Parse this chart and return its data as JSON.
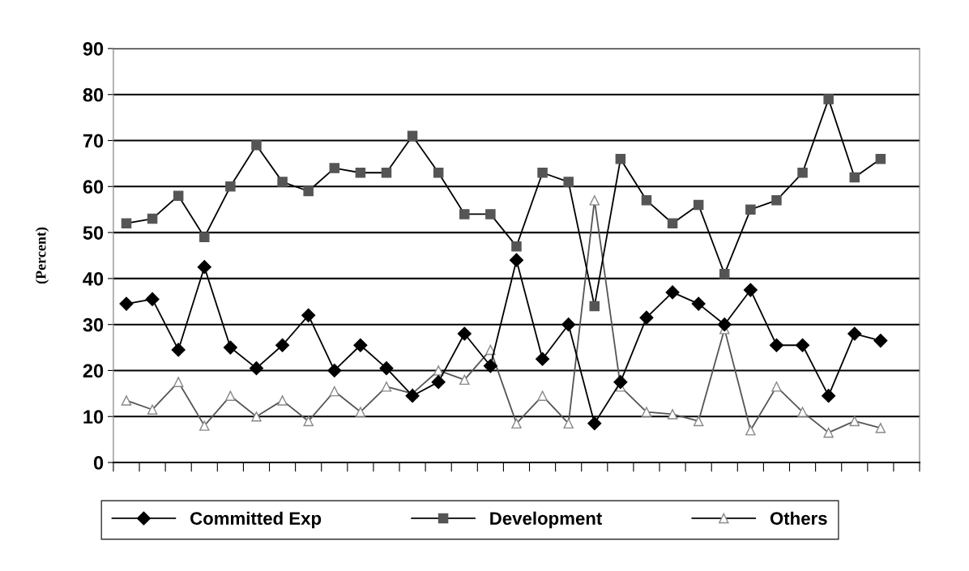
{
  "chart_data": {
    "type": "line",
    "ylabel": "(Percent)",
    "categories": [
      null,
      null,
      null,
      null,
      null,
      null,
      null,
      null,
      null,
      null,
      null,
      null,
      null,
      null,
      null,
      null,
      null,
      null,
      null,
      null,
      null,
      null,
      null,
      null,
      null,
      null,
      null,
      null,
      null,
      null,
      null
    ],
    "series": [
      {
        "name": "Committed Exp",
        "color": "#000000",
        "marker": "diamond",
        "values": [
          34.5,
          35.5,
          24.5,
          42.5,
          25,
          20.5,
          25.5,
          32,
          20,
          25.5,
          20.5,
          14.5,
          17.5,
          28,
          21,
          44,
          22.5,
          30,
          8.5,
          17.5,
          31.5,
          37,
          34.5,
          30,
          37.5,
          25.5,
          25.5,
          14.5,
          28,
          26.5,
          null
        ]
      },
      {
        "name": "Development",
        "color": "#555555",
        "marker": "square",
        "values": [
          52,
          53,
          58,
          49,
          60,
          69,
          61,
          59,
          64,
          63,
          63,
          71,
          63,
          54,
          54,
          47,
          63,
          61,
          34,
          66,
          57,
          52,
          56,
          41,
          55,
          57,
          63,
          79,
          62,
          66,
          null
        ]
      },
      {
        "name": "Others",
        "color": "#888888",
        "marker": "triangle",
        "values": [
          13.5,
          11.5,
          17.5,
          8,
          14.5,
          10,
          13.5,
          9,
          15.5,
          11,
          16.5,
          15,
          20,
          18,
          24.5,
          8.5,
          14.5,
          8.5,
          57,
          16.5,
          11,
          10.5,
          9,
          29,
          7,
          16.5,
          11,
          6.5,
          9,
          7.5,
          null
        ]
      }
    ],
    "ylim": [
      0,
      90
    ],
    "yticks": [
      0,
      10,
      20,
      30,
      40,
      50,
      60,
      70,
      80,
      90
    ],
    "grid": "y",
    "legend": "bottom",
    "line_style": "solid"
  }
}
